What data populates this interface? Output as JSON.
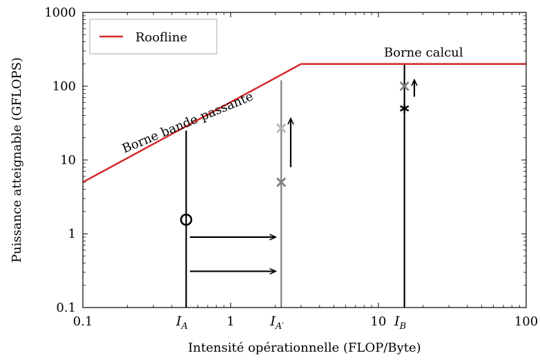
{
  "chart_data": {
    "type": "line",
    "xscale": "log",
    "yscale": "log",
    "xlim": [
      0.1,
      100
    ],
    "ylim": [
      0.1,
      1000
    ],
    "xlabel": "Intensité opérationnelle (FLOP/Byte)",
    "ylabel": "Puissance atteignable (GFLOPS)",
    "x_ticks": [
      {
        "value": 0.1,
        "label": "0.1"
      },
      {
        "value": 1,
        "label": "1"
      },
      {
        "value": 10,
        "label": "10"
      },
      {
        "value": 100,
        "label": "100"
      }
    ],
    "y_ticks": [
      {
        "value": 0.1,
        "label": "0.1"
      },
      {
        "value": 1,
        "label": "1"
      },
      {
        "value": 10,
        "label": "10"
      },
      {
        "value": 100,
        "label": "100"
      },
      {
        "value": 1000,
        "label": "1000"
      }
    ],
    "legend": {
      "position": "top-left",
      "label": "Roofline"
    },
    "series": [
      {
        "name": "Roofline",
        "color": "#d62728",
        "x": [
          0.1,
          3,
          100
        ],
        "y": [
          5,
          200,
          200
        ]
      }
    ],
    "annotations": {
      "bandwidth_label": "Borne bande passante",
      "compute_label": "Borne calcul"
    },
    "vertical_lines": [
      {
        "name": "I_A",
        "x": 0.5,
        "y_top": 25,
        "color": "#000000",
        "label_base": "I",
        "label_sub": "A"
      },
      {
        "name": "I_A'",
        "x": 2.2,
        "y_top": 120,
        "color": "#808080",
        "label_base": "I",
        "label_sub": "A′"
      },
      {
        "name": "I_B",
        "x": 15,
        "y_top": 200,
        "color": "#000000",
        "label_base": "I",
        "label_sub": "B"
      }
    ],
    "markers": [
      {
        "name": "circle-A",
        "x": 0.5,
        "y": 1.55,
        "shape": "circle",
        "color": "#000000"
      },
      {
        "name": "x-A-prime-low",
        "x": 2.2,
        "y": 5,
        "shape": "x",
        "color": "#808080"
      },
      {
        "name": "x-A-prime-high",
        "x": 2.2,
        "y": 27,
        "shape": "x",
        "color": "#b4b4b4"
      },
      {
        "name": "star-B",
        "x": 15,
        "y": 50,
        "shape": "star",
        "color": "#000000"
      },
      {
        "name": "x-B-high",
        "x": 15,
        "y": 100,
        "shape": "x",
        "color": "#808080"
      }
    ],
    "arrows": [
      {
        "name": "arrow-horizontal-1",
        "from": [
          0.53,
          0.9
        ],
        "to": [
          2.0,
          0.9
        ]
      },
      {
        "name": "arrow-horizontal-2",
        "from": [
          0.53,
          0.31
        ],
        "to": [
          2.0,
          0.31
        ]
      },
      {
        "name": "arrow-vertical-A-prime",
        "from": [
          2.55,
          8
        ],
        "to": [
          2.55,
          36
        ]
      },
      {
        "name": "arrow-vertical-B",
        "from": [
          17.5,
          72
        ],
        "to": [
          17.5,
          120
        ]
      }
    ]
  }
}
